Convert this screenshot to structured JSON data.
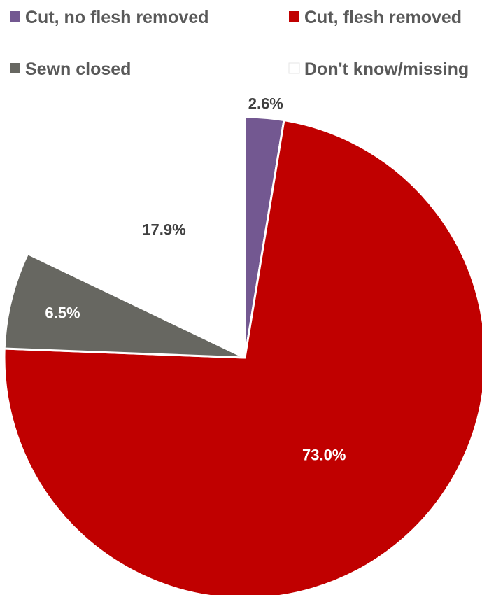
{
  "chart_data": {
    "type": "pie",
    "title": "",
    "legend_position": "top",
    "start_angle_deg": 0,
    "direction": "clockwise",
    "slices": [
      {
        "name": "Cut, no flesh removed",
        "value": 2.6,
        "label": "2.6%",
        "color": "#735891",
        "label_color": "#404040"
      },
      {
        "name": "Cut, flesh removed",
        "value": 73.0,
        "label": "73.0%",
        "color": "#c00000",
        "label_color": "#ffffff"
      },
      {
        "name": "Sewn closed",
        "value": 6.5,
        "label": "6.5%",
        "color": "#676761",
        "label_color": "#ffffff"
      },
      {
        "name": "Don't know/missing",
        "value": 17.9,
        "label": "17.9%",
        "color": "#ffffff",
        "label_color": "#404040"
      }
    ]
  }
}
